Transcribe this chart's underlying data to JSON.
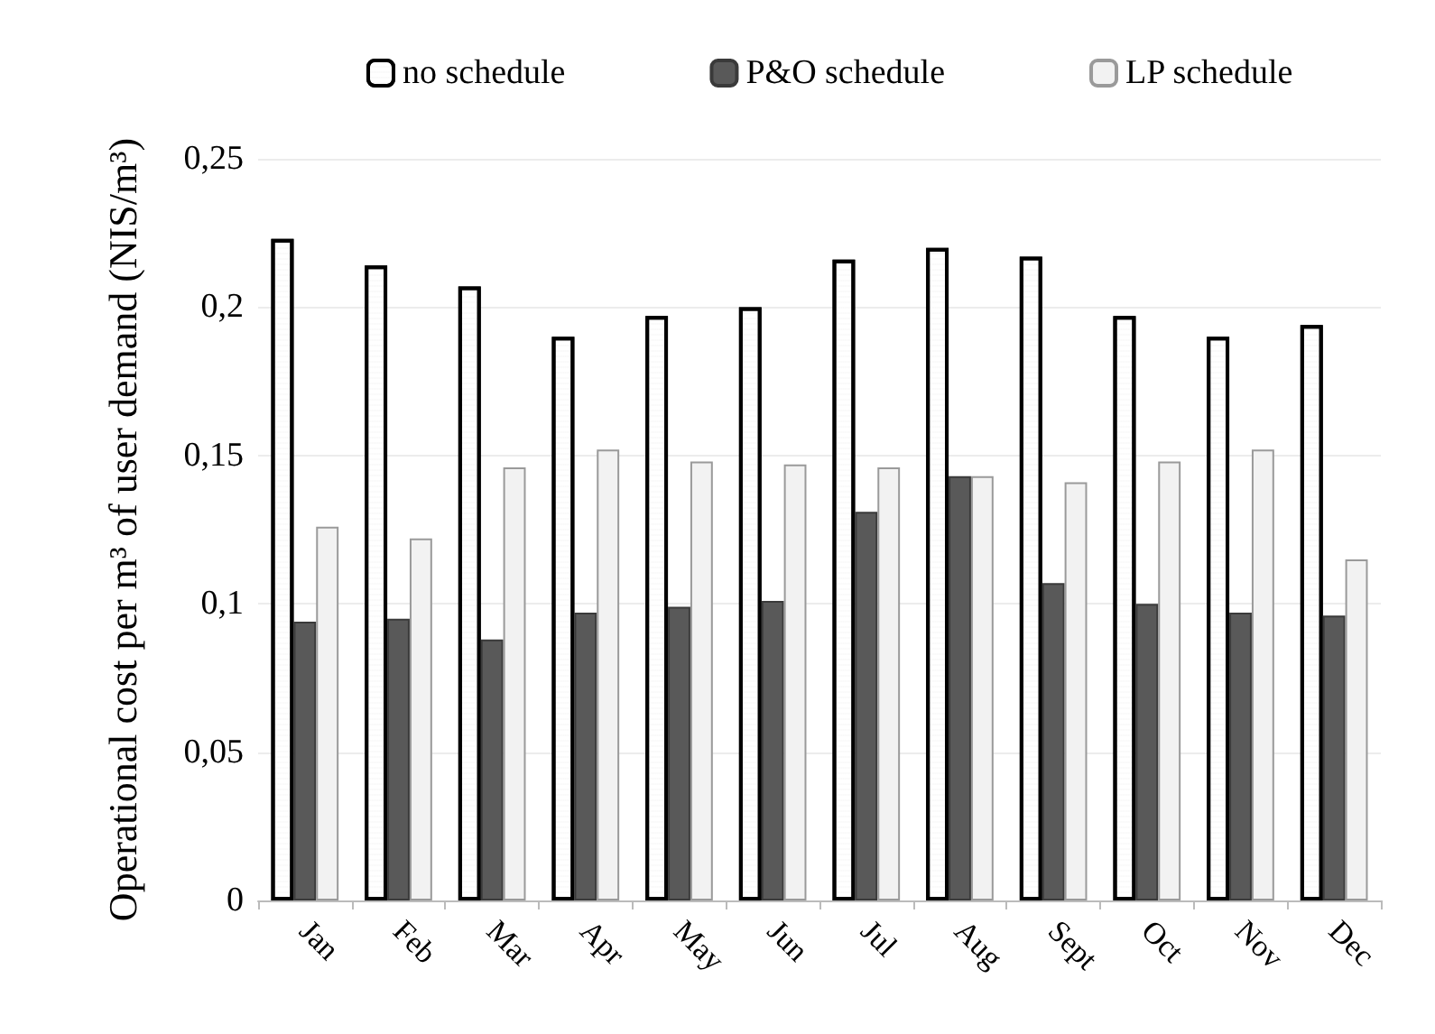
{
  "chart_data": {
    "type": "bar",
    "ylabel": "Operational cost per m³ of user demand (NIS/m³)",
    "categories": [
      "Jan",
      "Feb",
      "Mar",
      "Apr",
      "May",
      "Jun",
      "Jul",
      "Aug",
      "Sept",
      "Oct",
      "Nov",
      "Dec"
    ],
    "series": [
      {
        "name": "no schedule",
        "color": "#ffffff",
        "values": [
          0.223,
          0.214,
          0.207,
          0.19,
          0.197,
          0.2,
          0.216,
          0.22,
          0.217,
          0.197,
          0.19,
          0.194
        ]
      },
      {
        "name": "P&O schedule",
        "color": "#595959",
        "values": [
          0.094,
          0.095,
          0.088,
          0.097,
          0.099,
          0.101,
          0.131,
          0.143,
          0.107,
          0.1,
          0.097,
          0.096
        ]
      },
      {
        "name": "LP schedule",
        "color": "#f2f2f2",
        "values": [
          0.126,
          0.122,
          0.146,
          0.152,
          0.148,
          0.147,
          0.146,
          0.143,
          0.141,
          0.148,
          0.152,
          0.115
        ]
      }
    ],
    "ylim": [
      0,
      0.25
    ],
    "yticks": [
      0,
      {
        "value": 0.05,
        "label": "0,05"
      },
      {
        "value": 0.1,
        "label": "0,1"
      },
      {
        "value": 0.15,
        "label": "0,15"
      },
      {
        "value": 0.2,
        "label": "0,2"
      },
      {
        "value": 0.25,
        "label": "0,25"
      }
    ],
    "grid": "y",
    "legend": "top"
  }
}
